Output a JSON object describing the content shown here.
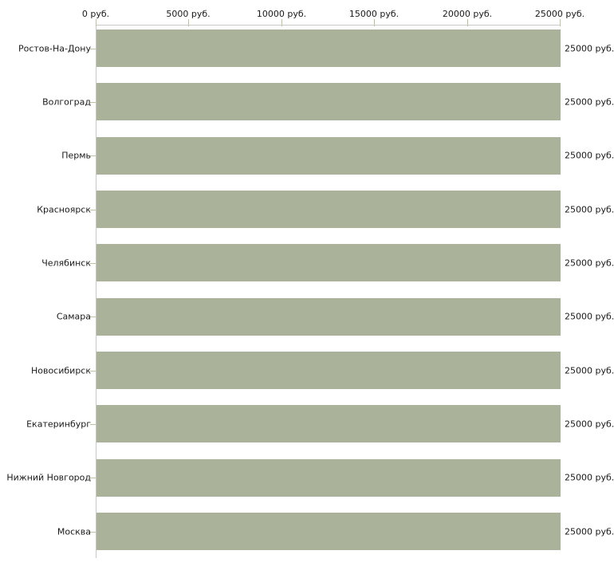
{
  "chart_data": {
    "type": "bar",
    "orientation": "horizontal",
    "title": "",
    "categories": [
      "Ростов-На-Дону",
      "Волгоград",
      "Пермь",
      "Красноярск",
      "Челябинск",
      "Самара",
      "Новосибирск",
      "Екатеринбург",
      "Нижний Новгород",
      "Москва"
    ],
    "values": [
      25000,
      25000,
      25000,
      25000,
      25000,
      25000,
      25000,
      25000,
      25000,
      25000
    ],
    "value_labels": [
      "25000 руб.",
      "25000 руб.",
      "25000 руб.",
      "25000 руб.",
      "25000 руб.",
      "25000 руб.",
      "25000 руб.",
      "25000 руб.",
      "25000 руб.",
      "25000 руб."
    ],
    "x_axis": {
      "position": "top",
      "unit": "руб.",
      "range": [
        0,
        25000
      ],
      "ticks": [
        0,
        5000,
        10000,
        15000,
        20000,
        25000
      ],
      "tick_labels": [
        "0 руб.",
        "5000 руб.",
        "10000 руб.",
        "15000 руб.",
        "20000 руб.",
        "25000 руб."
      ]
    },
    "grid": false,
    "legend": null,
    "colors": {
      "bar": "#abb29a",
      "axis_line": "#c8c8c8",
      "tick": "#c0c09b",
      "text": "#1a1a1a",
      "background": "#ffffff"
    }
  }
}
